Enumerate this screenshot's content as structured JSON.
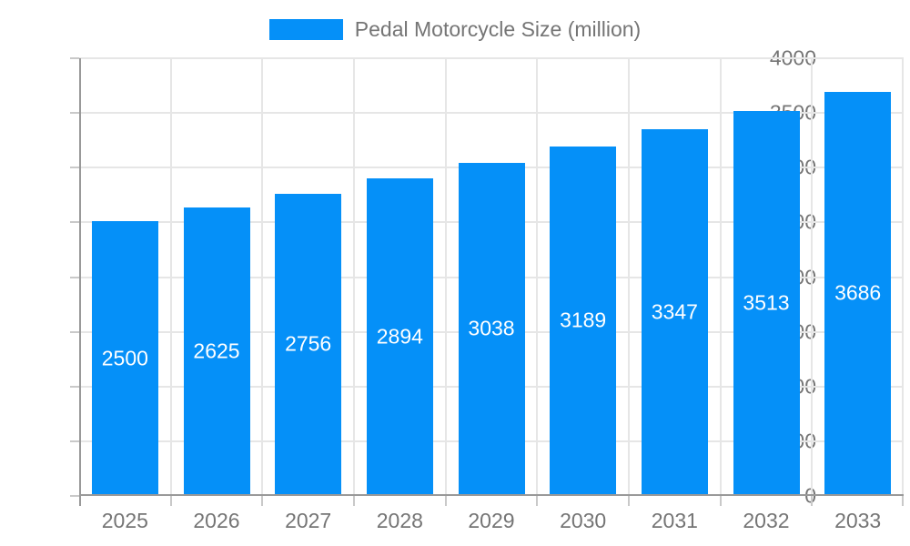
{
  "legend": {
    "label": "Pedal Motorcycle Size (million)"
  },
  "chart_data": {
    "type": "bar",
    "title": "Pedal Motorcycle Size (million)",
    "series_name": "Pedal Motorcycle Size (million)",
    "categories": [
      "2025",
      "2026",
      "2027",
      "2028",
      "2029",
      "2030",
      "2031",
      "2032",
      "2033"
    ],
    "values": [
      2500,
      2625,
      2756,
      2894,
      3038,
      3189,
      3347,
      3513,
      3686
    ],
    "xlabel": "",
    "ylabel": "",
    "ylim": [
      0,
      4000
    ],
    "y_ticks": [
      0,
      500,
      1000,
      1500,
      2000,
      2500,
      3000,
      3500,
      4000
    ],
    "grid": true,
    "legend_position": "top-center",
    "bar_labels_inside": true,
    "colors": {
      "bar": "#0590F8",
      "bar_label": "#FFFFFF",
      "axis_text": "#757575",
      "grid_line": "#E6E6E6",
      "axis_line": "#999999",
      "tick_line": "#C9C9C9"
    }
  }
}
